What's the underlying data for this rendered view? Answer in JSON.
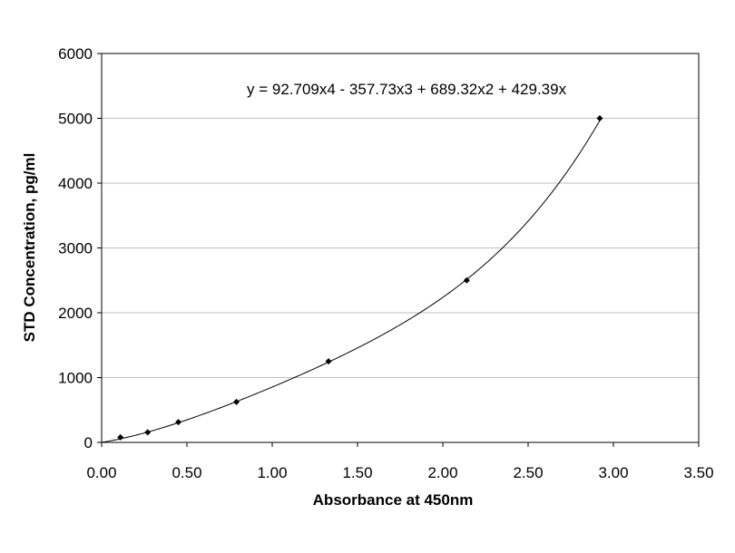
{
  "chart_data": {
    "type": "scatter",
    "title": "",
    "xlabel": "Absorbance at 450nm",
    "ylabel": "STD Concentration, pg/ml",
    "xlim": [
      0,
      3.5
    ],
    "ylim": [
      0,
      6000
    ],
    "xticks": [
      "0.00",
      "0.50",
      "1.00",
      "1.50",
      "2.00",
      "2.50",
      "3.00",
      "3.50"
    ],
    "yticks": [
      "0",
      "1000",
      "2000",
      "3000",
      "4000",
      "5000",
      "6000"
    ],
    "grid": "horizontal",
    "legend": "none",
    "series": [
      {
        "x": [
          0.11,
          0.27,
          0.45,
          0.79,
          1.33,
          2.14,
          2.92
        ],
        "y": [
          78,
          156,
          313,
          625,
          1250,
          2500,
          5000
        ]
      }
    ],
    "trendline": {
      "type": "polynomial",
      "coefficients": [
        0,
        429.39,
        689.32,
        -357.73,
        92.709
      ],
      "equation": "y = 92.709x4 - 357.73x3 + 689.32x2 + 429.39x",
      "x_range": [
        0,
        2.92
      ]
    },
    "colors": {
      "line": "#000000",
      "marker": "#000000",
      "grid": "#bfbfbf",
      "axis": "#000000"
    }
  }
}
